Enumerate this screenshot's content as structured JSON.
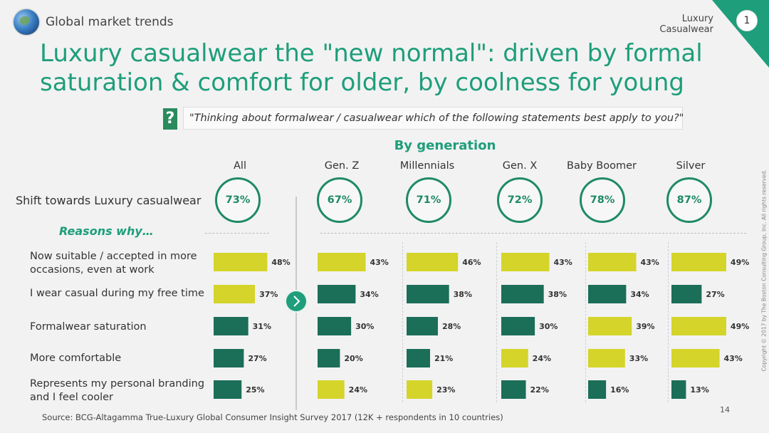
{
  "header": {
    "section_title": "Global market trends",
    "tag": "Luxury Casualwear",
    "page_badge": "1",
    "accent_color": "#1e9e7a"
  },
  "title": {
    "line1": "Luxury casualwear the \"new normal\": driven by formal",
    "line2": "saturation & comfort for older, by coolness for young"
  },
  "question": {
    "icon": "?",
    "text": "\"Thinking about formalwear / casualwear which of the following statements best apply to you?\""
  },
  "by_generation_label": "By generation",
  "shift_label": "Shift towards Luxury casualwear",
  "reasons_label": "Reasons why…",
  "chart_data": {
    "type": "bar",
    "title": "Luxury casualwear the \"new normal\"",
    "groups": [
      "All",
      "Gen. Z",
      "Millennials",
      "Gen. X",
      "Baby Boomer",
      "Silver"
    ],
    "shift": [
      "73%",
      "67%",
      "71%",
      "72%",
      "78%",
      "87%"
    ],
    "categories": [
      "Now suitable / accepted in more occasions, even at work",
      "I wear casual during my free time",
      "Formalwear saturation",
      "More comfortable",
      "Represents my personal branding and I feel cooler"
    ],
    "category_lines": [
      [
        "Now suitable / accepted in more",
        "occasions, even at work"
      ],
      [
        "I wear casual during my free time"
      ],
      [
        "Formalwear saturation"
      ],
      [
        "More comfortable"
      ],
      [
        "Represents my personal branding",
        "and I feel cooler"
      ]
    ],
    "series": [
      {
        "name": "All",
        "values": [
          48,
          37,
          31,
          27,
          25
        ],
        "highlight": [
          1,
          1,
          0,
          0,
          0
        ]
      },
      {
        "name": "Gen. Z",
        "values": [
          43,
          34,
          30,
          20,
          24
        ],
        "highlight": [
          1,
          0,
          0,
          0,
          1
        ]
      },
      {
        "name": "Millennials",
        "values": [
          46,
          38,
          28,
          21,
          23
        ],
        "highlight": [
          1,
          0,
          0,
          0,
          1
        ]
      },
      {
        "name": "Gen. X",
        "values": [
          43,
          38,
          30,
          24,
          22
        ],
        "highlight": [
          1,
          0,
          0,
          1,
          0
        ]
      },
      {
        "name": "Baby Boomer",
        "values": [
          43,
          34,
          39,
          33,
          16
        ],
        "highlight": [
          1,
          0,
          1,
          1,
          0
        ]
      },
      {
        "name": "Silver",
        "values": [
          49,
          27,
          49,
          43,
          13
        ],
        "highlight": [
          1,
          0,
          1,
          1,
          0
        ]
      }
    ],
    "unit": "%",
    "colors": {
      "highlight": "#d4d42a",
      "normal": "#1b6e58"
    }
  },
  "footer": {
    "source": "Source: BCG-Altagamma True-Luxury Global Consumer Insight Survey 2017 (12K + respondents in 10 countries)",
    "page_number": "14",
    "copyright": "Copyright © 2017 by The Boston Consulting Group, Inc. All rights reserved."
  }
}
